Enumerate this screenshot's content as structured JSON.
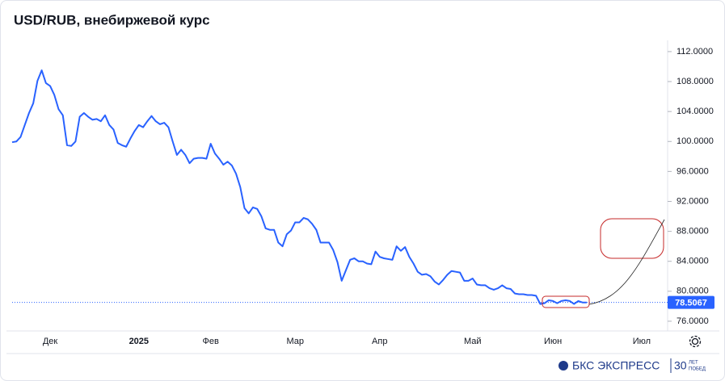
{
  "chart_data": {
    "type": "line",
    "title": "USD/RUB, внебиржевой курс",
    "categories": [
      null,
      null,
      null,
      null,
      null,
      null,
      null,
      null,
      null,
      "Дек",
      null,
      null,
      null,
      null,
      null,
      null,
      null,
      null,
      null,
      null,
      null,
      null,
      null,
      null,
      null,
      null,
      null,
      null,
      null,
      null,
      "2025",
      null,
      null,
      null,
      null,
      null,
      null,
      null,
      null,
      null,
      null,
      null,
      null,
      null,
      null,
      null,
      null,
      "Фев",
      null,
      null,
      null,
      null,
      null,
      null,
      null,
      null,
      null,
      null,
      null,
      null,
      null,
      null,
      null,
      null,
      null,
      null,
      null,
      "Мар",
      null,
      null,
      null,
      null,
      null,
      null,
      null,
      null,
      null,
      null,
      null,
      null,
      null,
      null,
      null,
      null,
      null,
      null,
      null,
      "Апр",
      null,
      null,
      null,
      null,
      null,
      null,
      null,
      null,
      null,
      null,
      null,
      null,
      null,
      null,
      null,
      null,
      null,
      null,
      null,
      null,
      null,
      "Май",
      null,
      null,
      null,
      null,
      null,
      null,
      null,
      null,
      null,
      null,
      null,
      null,
      null,
      null,
      null,
      null,
      null,
      null,
      "Июн",
      null,
      null,
      null,
      null,
      null,
      null,
      null,
      null,
      null,
      null,
      null,
      null,
      null,
      null,
      null,
      null,
      null,
      null,
      null,
      null,
      "Июл",
      null,
      null,
      null,
      null,
      null
    ],
    "values": [
      99.9,
      100.0,
      100.6,
      102.2,
      103.8,
      105.1,
      108.1,
      109.5,
      107.8,
      107.4,
      106.2,
      104.3,
      103.5,
      99.5,
      99.4,
      100.0,
      103.3,
      103.8,
      103.3,
      102.9,
      103.0,
      102.7,
      103.5,
      102.2,
      101.6,
      99.8,
      99.5,
      99.3,
      100.4,
      101.4,
      102.2,
      101.9,
      102.7,
      103.4,
      102.7,
      102.3,
      102.5,
      101.9,
      100.0,
      98.2,
      98.9,
      98.2,
      97.1,
      97.7,
      97.8,
      97.8,
      97.7,
      99.7,
      98.4,
      97.7,
      96.9,
      97.3,
      96.8,
      95.7,
      93.9,
      91.1,
      90.4,
      91.2,
      91.0,
      90.0,
      88.4,
      88.2,
      88.2,
      86.5,
      86.0,
      87.6,
      88.1,
      89.2,
      89.2,
      89.8,
      89.6,
      89.0,
      88.2,
      86.5,
      86.5,
      86.5,
      85.5,
      83.9,
      81.4,
      82.8,
      84.2,
      84.4,
      84.0,
      84.0,
      83.7,
      83.6,
      85.3,
      84.6,
      84.4,
      84.3,
      84.2,
      86.0,
      85.4,
      85.9,
      84.6,
      83.7,
      82.6,
      82.2,
      82.3,
      82.0,
      81.3,
      80.9,
      81.5,
      82.2,
      82.7,
      82.6,
      82.5,
      81.4,
      81.4,
      81.7,
      80.9,
      80.8,
      80.8,
      80.4,
      80.2,
      80.4,
      80.8,
      80.4,
      80.3,
      79.7,
      79.6,
      79.6,
      79.5,
      79.5,
      79.4,
      78.3,
      78.4,
      78.8,
      78.7,
      78.4,
      78.7,
      78.8,
      78.7,
      78.3,
      78.7,
      78.5,
      78.5,
      null,
      null,
      null,
      null,
      null,
      null,
      null,
      null,
      null,
      null,
      null,
      null,
      null,
      null,
      null,
      null,
      null,
      null
    ],
    "color": "#2962ff",
    "last_price": 78.5067,
    "ylim": [
      74.7,
      113.5
    ],
    "yticks": [
      {
        "value": 76,
        "label": "76.0000"
      },
      {
        "value": 80,
        "label": "80.0000"
      },
      {
        "value": 84,
        "label": "84.0000"
      },
      {
        "value": 88,
        "label": "88.0000"
      },
      {
        "value": 92,
        "label": "92.0000"
      },
      {
        "value": 96,
        "label": "96.0000"
      },
      {
        "value": 100,
        "label": "100.0000"
      },
      {
        "value": 104,
        "label": "104.0000"
      },
      {
        "value": 108,
        "label": "108.0000"
      },
      {
        "value": 112,
        "label": "112.0000"
      }
    ],
    "grid": false
  },
  "footer": {
    "brand": "БКС ЭКСПРЕСС",
    "logo_number": "30",
    "logo_text_1": "ЛЕТ",
    "logo_text_2": "ПОБЕД"
  }
}
